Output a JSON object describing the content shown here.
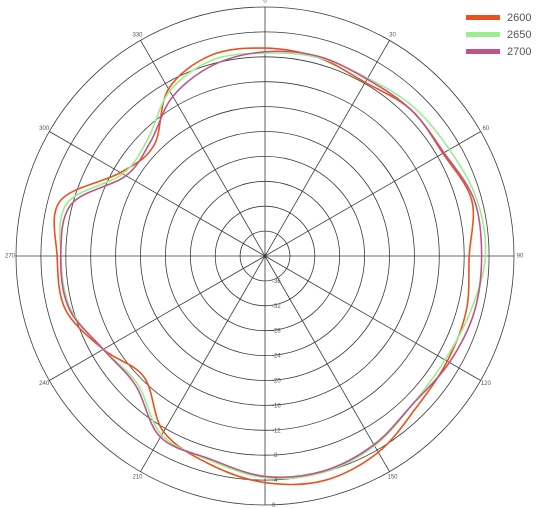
{
  "chart_data": {
    "type": "polar-line",
    "rlim": [
      -40,
      0
    ],
    "radial_ticks": [
      "-36",
      "-32",
      "-28",
      "-24",
      "-20",
      "-16",
      "-12",
      "-8",
      "-4",
      "0"
    ],
    "angle_labels": [
      "0",
      "30",
      "60",
      "90",
      "120",
      "150",
      "180",
      "210",
      "240",
      "270",
      "300",
      "330"
    ],
    "grid": true,
    "legend_position": "top-right",
    "angles": [
      0,
      15,
      30,
      45,
      60,
      75,
      90,
      105,
      120,
      135,
      150,
      165,
      180,
      195,
      210,
      225,
      240,
      255,
      270,
      285,
      300,
      315,
      330,
      345
    ],
    "series": [
      {
        "name": "2600",
        "color": "#e8531c",
        "values": [
          -6.6,
          -7,
          -7.8,
          -6.8,
          -7,
          -5.6,
          -7.2,
          -6.5,
          -6.2,
          -5.6,
          -3.6,
          -2.7,
          -3.6,
          -5.4,
          -7.4,
          -12.5,
          -10,
          -6.8,
          -6.6,
          -5.9,
          -13.2,
          -14.8,
          -9,
          -6.6
        ]
      },
      {
        "name": "2650",
        "color": "#9aee8e",
        "values": [
          -7.4,
          -7,
          -7,
          -6.2,
          -5.8,
          -4.8,
          -4.6,
          -5.8,
          -6.6,
          -6.4,
          -4.8,
          -4,
          -4.4,
          -6,
          -6.8,
          -11,
          -10,
          -7.6,
          -7.2,
          -7.1,
          -13.6,
          -13.4,
          -9.4,
          -7.4
        ]
      },
      {
        "name": "2700",
        "color": "#c2538a",
        "values": [
          -7.2,
          -6.8,
          -7.2,
          -6.8,
          -6.8,
          -5.2,
          -5.2,
          -5.2,
          -5.8,
          -6.4,
          -5,
          -4.2,
          -4.6,
          -6.2,
          -6.4,
          -10.6,
          -10,
          -7.4,
          -7.2,
          -7.8,
          -14.2,
          -14,
          -10.4,
          -8.2
        ]
      }
    ]
  }
}
